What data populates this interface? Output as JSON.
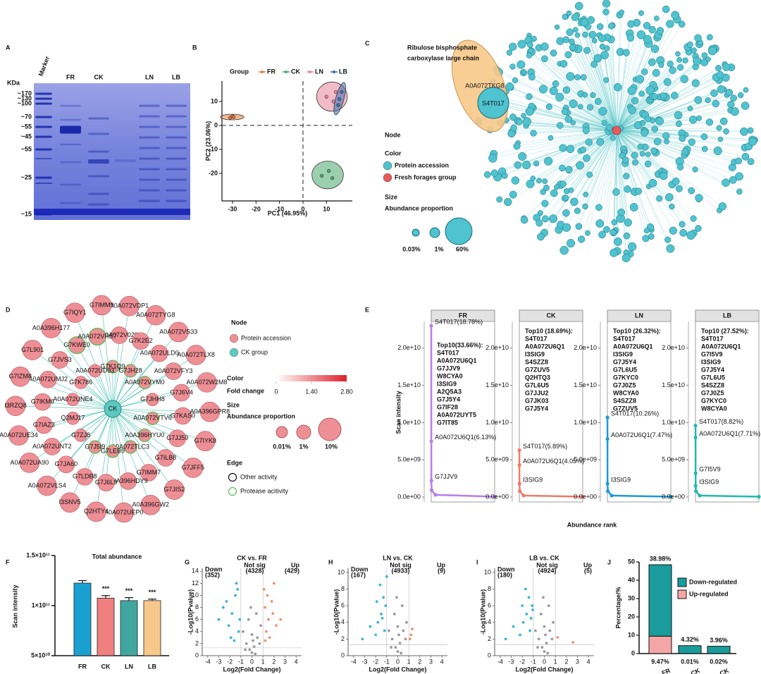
{
  "panel_labels": [
    "A",
    "B",
    "C",
    "D",
    "E",
    "F",
    "G",
    "H",
    "I",
    "J"
  ],
  "gel": {
    "unit": "KDa",
    "lanes": [
      "Marker",
      "FR",
      "CK",
      "LN",
      "LB"
    ],
    "markers": [
      "~170",
      "~130",
      "~100",
      "~70",
      "~55",
      "~45",
      "~55",
      "~25",
      "~15"
    ]
  },
  "network_c": {
    "title_lines": [
      "Ribulose bisphosphate",
      "carboxylase large chain"
    ],
    "highlight": [
      "A0A072TKG8",
      "S4T017"
    ],
    "legend": {
      "node": "Node",
      "color": "Color",
      "color_items": [
        "Protein accession",
        "Fresh forages group"
      ],
      "size": "Size",
      "size_title": "Abundance proportion",
      "size_items": [
        "0.03%",
        "1%",
        "60%"
      ]
    }
  },
  "network_d": {
    "center": "CK",
    "nodes": [
      {
        "label": "G7K1Q9",
        "protease": true
      },
      {
        "label": "G7JH28",
        "protease": true
      },
      {
        "label": "A0A072VYM0",
        "protease": true
      },
      {
        "label": "G7JHH8",
        "protease": false
      },
      {
        "label": "A0A072VTV6",
        "protease": true
      },
      {
        "label": "A0A396HYU0",
        "protease": true
      },
      {
        "label": "A0A072TLC3",
        "protease": true
      },
      {
        "label": "G7LEB9",
        "protease": true
      },
      {
        "label": "G7J5I9",
        "protease": true
      },
      {
        "label": "G7ZJ8",
        "protease": false
      },
      {
        "label": "Q2MJ17",
        "protease": false
      },
      {
        "label": "A0A072UNE4",
        "protease": false
      },
      {
        "label": "G7K786",
        "protease": false
      },
      {
        "label": "A0A072UD93",
        "protease": false
      },
      {
        "label": "A0A072V029",
        "protease": false
      },
      {
        "label": "G7K2E2",
        "protease": false
      },
      {
        "label": "A0A072ULD0",
        "protease": false
      },
      {
        "label": "A0A072VFY3",
        "protease": false
      },
      {
        "label": "G7J6V4",
        "protease": false
      },
      {
        "label": "G7KAS0",
        "protease": false
      },
      {
        "label": "G7JJ59",
        "protease": false
      },
      {
        "label": "G7ILB8",
        "protease": false
      },
      {
        "label": "G7IMM7",
        "protease": false
      },
      {
        "label": "A0A396HDY9",
        "protease": false
      },
      {
        "label": "G7J6L9",
        "protease": false
      },
      {
        "label": "G7LDB8",
        "protease": false
      },
      {
        "label": "G7JA60",
        "protease": false
      },
      {
        "label": "A0A072UNT2",
        "protease": false
      },
      {
        "label": "G7IAZ3",
        "protease": false
      },
      {
        "label": "G7IKM6",
        "protease": false
      },
      {
        "label": "A0A072UMJ2",
        "protease": false
      },
      {
        "label": "G7JVS3",
        "protease": false
      },
      {
        "label": "G7KWE0",
        "protease": true
      },
      {
        "label": "A0A072VRE7",
        "protease": true
      },
      {
        "label": "A0A072VDP1",
        "protease": false
      },
      {
        "label": "A0A072TYG8",
        "protease": false
      },
      {
        "label": "A0A072VS33",
        "protease": false
      },
      {
        "label": "A0A072TLX8",
        "protease": false
      },
      {
        "label": "A0A072W2M8",
        "protease": false
      },
      {
        "label": "A0A396GPR8",
        "protease": false
      },
      {
        "label": "G7IYK8",
        "protease": false
      },
      {
        "label": "G7JFF5",
        "protease": false
      },
      {
        "label": "G7JIS2",
        "protease": false
      },
      {
        "label": "A0A396GW2",
        "protease": false
      },
      {
        "label": "A0A072UEP0",
        "protease": false
      },
      {
        "label": "Q2HTY4",
        "protease": false
      },
      {
        "label": "I3SNV5",
        "protease": false
      },
      {
        "label": "A0A072VLS4",
        "protease": false
      },
      {
        "label": "A0A072UA90",
        "protease": false
      },
      {
        "label": "A0A072UE34",
        "protease": false
      },
      {
        "label": "I3RZQ8",
        "protease": false
      },
      {
        "label": "G7IZM8",
        "protease": false
      },
      {
        "label": "G7L901",
        "protease": false
      },
      {
        "label": "A0A396H177",
        "protease": false
      },
      {
        "label": "G7IQY1",
        "protease": false
      },
      {
        "label": "G7IMM9",
        "protease": false
      }
    ],
    "legend": {
      "node": "Node",
      "node_items": [
        "Protein accession",
        "CK group"
      ],
      "color": "Color",
      "color_title": "Fold change",
      "colorbar_ticks": [
        0,
        {
          "value": 1.4,
          "label": "1.40"
        },
        {
          "value": 2.8,
          "label": "2.80"
        }
      ],
      "size": "Size",
      "size_title": "Abundance proportion",
      "size_items": [
        "0.01%",
        "1%",
        "10%"
      ],
      "edge": "Edge",
      "edge_items": [
        "Other activity",
        "Protease acitivity"
      ]
    }
  },
  "chart_data": [
    {
      "type": "scatter",
      "legend_title": "Group",
      "x_label": "PC1 (46.95%)",
      "y_label": "PC2 (23.06%)",
      "xlim": [
        -34.5,
        21
      ],
      "ylim": [
        -31.5,
        18.5
      ],
      "xticks": [
        -30,
        -20,
        -10,
        0,
        10
      ],
      "yticks": [
        -20,
        -10,
        0,
        10
      ],
      "series": [
        {
          "name": "FR",
          "color": "#e07b39",
          "x": [
            -31,
            -30,
            -29.5
          ],
          "values": [
            3.2,
            3.8,
            3.5
          ]
        },
        {
          "name": "CK",
          "color": "#4aa86a",
          "x": [
            8,
            11,
            12.5
          ],
          "values": [
            -21,
            -19,
            -22
          ]
        },
        {
          "name": "LN",
          "color": "#e8849a",
          "x": [
            10,
            13,
            14
          ],
          "values": [
            12,
            10,
            14
          ]
        },
        {
          "name": "LB",
          "color": "#3a6fb0",
          "x": [
            15.5,
            16.5,
            15
          ],
          "values": [
            11,
            14,
            8.5
          ]
        }
      ]
    },
    {
      "type": "line",
      "y_label": "Scan intensity",
      "x_label": "Abundance rank",
      "xlim": [
        0,
        1500
      ],
      "ylim": [
        -660000000,
        23580000000
      ],
      "yticks": [
        {
          "value": 0,
          "label": "0.0e+00"
        },
        {
          "value": 5000000000,
          "label": "5.0e+09"
        },
        {
          "value": 10000000000,
          "label": "1.0e+10"
        },
        {
          "value": 15000000000,
          "label": "1.5e+10"
        },
        {
          "value": 20000000000,
          "label": "2.0e+10"
        }
      ],
      "series": [
        {
          "name": "FR",
          "color": "#b67ee6",
          "x": [
            1,
            2,
            3,
            10,
            100,
            1500
          ],
          "values": [
            23000000000,
            7500000000,
            2200000000,
            900000000,
            300000000,
            50000000
          ],
          "point_labels": [
            "S4T017(18.78%)",
            "A0A072U6Q1(6.13%)",
            "G7JJV9",
            null,
            null,
            null
          ],
          "top10_title": "Top10(33.66%):",
          "top10": [
            "S4T017",
            "A0A072U6Q1",
            "G7JJV9",
            "W8CYA0",
            "I3SIG9",
            "A2Q5A3",
            "G7J5Y4",
            "G7IF28",
            "A0A072UYT5",
            "G7IT85"
          ]
        },
        {
          "name": "CK",
          "color": "#ee7a6a",
          "x": [
            1,
            2,
            3,
            10,
            100,
            1500
          ],
          "values": [
            6300000000,
            4300000000,
            1800000000,
            800000000,
            200000000,
            50000000
          ],
          "point_labels": [
            "S4T017(5.89%)",
            "A0A072U6Q1(4.05%)",
            "I3SIG9",
            null,
            null,
            null
          ],
          "top10_title": "Top10 (18.69%):",
          "top10": [
            "S4T017",
            "A0A072U6Q1",
            "I3SIG9",
            "S4SZZ8",
            "G7ZUV5",
            "Q2HTQ3",
            "G7L6U5",
            "G7JJU2",
            "G7JK03",
            "G7J5Y4"
          ]
        },
        {
          "name": "LN",
          "color": "#1e9ad6",
          "x": [
            1,
            2,
            3,
            10,
            100,
            1500
          ],
          "values": [
            10700000000,
            7800000000,
            1800000000,
            800000000,
            200000000,
            50000000
          ],
          "point_labels": [
            "S4T017(10.26%)",
            "A0A072U6Q1(7.47%)",
            "I3SIG9",
            null,
            null,
            null
          ],
          "top10_title": "Top10 (26.32%):",
          "top10": [
            "S4T017",
            "A0A072U6Q1",
            "I3SIG9",
            "G7J5Y4",
            "G7L6U5",
            "G7KYC0",
            "G7J0Z5",
            "W8CYA0",
            "S4SZZ8",
            "G7ZUV5"
          ]
        },
        {
          "name": "LB",
          "color": "#22b8b0",
          "x": [
            1,
            2,
            3,
            4,
            10,
            100,
            1500
          ],
          "values": [
            9600000000,
            8000000000,
            3200000000,
            1500000000,
            800000000,
            200000000,
            50000000
          ],
          "point_labels": [
            "S4T017(8.82%)",
            "A0A072U6Q1(7.71%)",
            "G7I5V9",
            "I3SIG9",
            null,
            null,
            null
          ],
          "top10_title": "Top10 (27.52%):",
          "top10": [
            "S4T017",
            "A0A072U6Q1",
            "G7I5V9",
            "I3SIG9",
            "G7J5Y4",
            "G7L6U5",
            "S4SZZ8",
            "G7J0Z5",
            "G7KYC0",
            "W8CYA0"
          ]
        }
      ]
    },
    {
      "type": "bar",
      "title": "Total abundance",
      "y_label": "Scan intensity",
      "categories": [
        "FR",
        "CK",
        "LN",
        "LB"
      ],
      "values": [
        122500000000,
        107500000000,
        105000000000,
        105000000000
      ],
      "errors": [
        2500000000,
        2500000000,
        3000000000,
        1500000000
      ],
      "colors": [
        "#1aa0d0",
        "#f08080",
        "#3fa7a0",
        "#f8c88a"
      ],
      "annotations": [
        null,
        "***",
        "***",
        "***"
      ],
      "ylim": [
        50000000000,
        150000000000
      ],
      "yticks": [
        {
          "value": 50000000000,
          "label": "5×10¹⁰"
        },
        {
          "value": 100000000000,
          "label": "1×10¹¹"
        },
        {
          "value": 150000000000,
          "label": "1.5×10¹¹"
        }
      ]
    },
    {
      "type": "scatter",
      "title": "CK vs. FR",
      "x_label": "Log2(Fold Change)",
      "y_label": "-Log10(Pvalue)",
      "xlim": [
        -4.5,
        4.5
      ],
      "ylim": [
        0,
        14.5
      ],
      "xticks": [
        -4,
        -3,
        -2,
        -1,
        0,
        1,
        2,
        3,
        4
      ],
      "yticks": [
        0,
        2,
        4,
        6,
        8,
        10,
        12,
        14
      ],
      "thresholds_x": [
        -1,
        1
      ],
      "threshold_y": 1.3,
      "series": [
        {
          "name": "Down",
          "count": {
            "value": 352,
            "label": "(352)"
          },
          "color": "#3bb4d8",
          "x": [
            -1.5,
            -1.8,
            -2.1,
            -1.2,
            -2.6,
            -1.4,
            -1.9,
            -1.1,
            -2.3,
            -1.6,
            -3.0,
            -1.3
          ],
          "values": [
            10,
            7,
            5,
            4,
            8,
            12,
            3,
            6,
            9,
            2.5,
            6,
            11
          ]
        },
        {
          "name": "Not sig",
          "count": {
            "value": 4328,
            "label": "(4328)"
          },
          "color": "#9a9a9a",
          "x": [
            -0.8,
            -0.5,
            -0.2,
            0,
            0.2,
            0.5,
            0.8,
            -0.3,
            0.4,
            0.1,
            -0.6,
            0.7,
            0,
            -0.1,
            0.3
          ],
          "values": [
            4,
            2,
            1,
            0.5,
            1.5,
            3,
            5,
            6,
            7,
            2.5,
            1,
            2,
            3.5,
            8,
            0.3
          ]
        },
        {
          "name": "Up",
          "count": {
            "value": 429,
            "label": "(429)"
          },
          "color": "#f0946a",
          "x": [
            1.2,
            1.5,
            1.8,
            1.3,
            2.2,
            1.1,
            1.6,
            2.6,
            1.4,
            1.9,
            1.2,
            2.0
          ],
          "values": [
            8,
            6,
            9,
            4,
            5,
            11,
            3,
            6,
            10,
            7,
            2.5,
            12
          ]
        }
      ]
    },
    {
      "type": "scatter",
      "title": "LN vs. CK",
      "x_label": "Log2(Fold Change)",
      "y_label": "-Log10(Pvalue)",
      "xlim": [
        -4.5,
        4.5
      ],
      "ylim": [
        0,
        10.5
      ],
      "xticks": [
        -4,
        -3,
        -2,
        -1,
        0,
        1,
        2,
        3,
        4
      ],
      "yticks": [
        0,
        2,
        4,
        6,
        8,
        10
      ],
      "thresholds_x": [
        -1,
        1
      ],
      "threshold_y": 1.3,
      "series": [
        {
          "name": "Down",
          "count": {
            "value": 167,
            "label": "(167)"
          },
          "color": "#3bb4d8",
          "x": [
            -1.2,
            -1.5,
            -2.0,
            -1.1,
            -1.8,
            -2.5,
            -1.3,
            -1.6,
            -3.2,
            -1.4,
            -1.9,
            -1.0
          ],
          "values": [
            3,
            5,
            2.5,
            6,
            4,
            3.5,
            7,
            8.5,
            2,
            4.5,
            6.5,
            9.5
          ]
        },
        {
          "name": "Not sig",
          "count": {
            "value": 4933,
            "label": "(4933)"
          },
          "color": "#9a9a9a",
          "x": [
            -0.8,
            -0.5,
            -0.2,
            0,
            0.2,
            0.5,
            0.8,
            -0.3,
            0.4,
            0.1,
            -0.6,
            0.7,
            0,
            -0.1,
            0.3
          ],
          "values": [
            3,
            2,
            1,
            0.5,
            1.5,
            3,
            4,
            5,
            6,
            2.5,
            1,
            2,
            3.5,
            7,
            0.3
          ]
        },
        {
          "name": "Up",
          "count": {
            "value": 9,
            "label": "(9)"
          },
          "color": "#f0946a",
          "x": [
            1.1,
            1.3,
            1.2
          ],
          "values": [
            2,
            3.2,
            2.5
          ]
        }
      ]
    },
    {
      "type": "scatter",
      "title": "LB vs. CK",
      "x_label": "Log2(Fold Change)",
      "y_label": "-Log10(Pvalue)",
      "xlim": [
        -4.5,
        4.5
      ],
      "ylim": [
        0,
        10.5
      ],
      "xticks": [
        -4,
        -3,
        -2,
        -1,
        0,
        1,
        2,
        3,
        4
      ],
      "yticks": [
        0,
        2,
        4,
        6,
        8,
        10
      ],
      "thresholds_x": [
        -1,
        1
      ],
      "threshold_y": 1.3,
      "series": [
        {
          "name": "Down",
          "count": {
            "value": 180,
            "label": "(180)"
          },
          "color": "#3bb4d8",
          "x": [
            -1.3,
            -1.6,
            -2.2,
            -1.1,
            -1.9,
            -2.8,
            -1.4,
            -1.7,
            -3.5,
            -1.2,
            -2.0,
            -1.05
          ],
          "values": [
            3,
            5,
            2.5,
            6,
            4,
            3.5,
            7,
            8,
            2,
            4.5,
            6,
            5.5
          ]
        },
        {
          "name": "Not sig",
          "count": {
            "value": 4924,
            "label": "(4924)"
          },
          "color": "#9a9a9a",
          "x": [
            -0.8,
            -0.5,
            -0.2,
            0,
            0.2,
            0.5,
            0.8,
            -0.3,
            0.4,
            0.1,
            -0.6,
            0.7,
            0,
            -0.1,
            0.3
          ],
          "values": [
            3,
            2,
            1,
            0.5,
            1.5,
            3,
            4,
            5,
            6,
            2.5,
            1,
            2,
            3.5,
            7,
            0.3
          ]
        },
        {
          "name": "Up",
          "count": {
            "value": 5,
            "label": "(5)"
          },
          "color": "#f0946a",
          "x": [
            1.2,
            2.6
          ],
          "values": [
            2.2,
            1.6
          ]
        }
      ]
    },
    {
      "type": "bar",
      "stacked": true,
      "y_label": "Percentage/%",
      "categories": [
        "CK vs. FR",
        "LB vs. CK",
        "LN vs. CK"
      ],
      "ylim": [
        0,
        50
      ],
      "yticks": [
        0,
        10,
        20,
        30,
        40,
        50
      ],
      "series": [
        {
          "name": "Down-regulated",
          "color": "#1a9c9c",
          "values": [
            38.98,
            4.32,
            3.96
          ],
          "value_labels": [
            "38.98%",
            "4.32%",
            "3.96%"
          ]
        },
        {
          "name": "Up-regulated",
          "color": "#f4a6a6",
          "values": [
            9.47,
            0.01,
            0.02
          ],
          "value_labels": [
            "9.47%",
            "0.01%",
            "0.02%"
          ]
        }
      ]
    }
  ]
}
